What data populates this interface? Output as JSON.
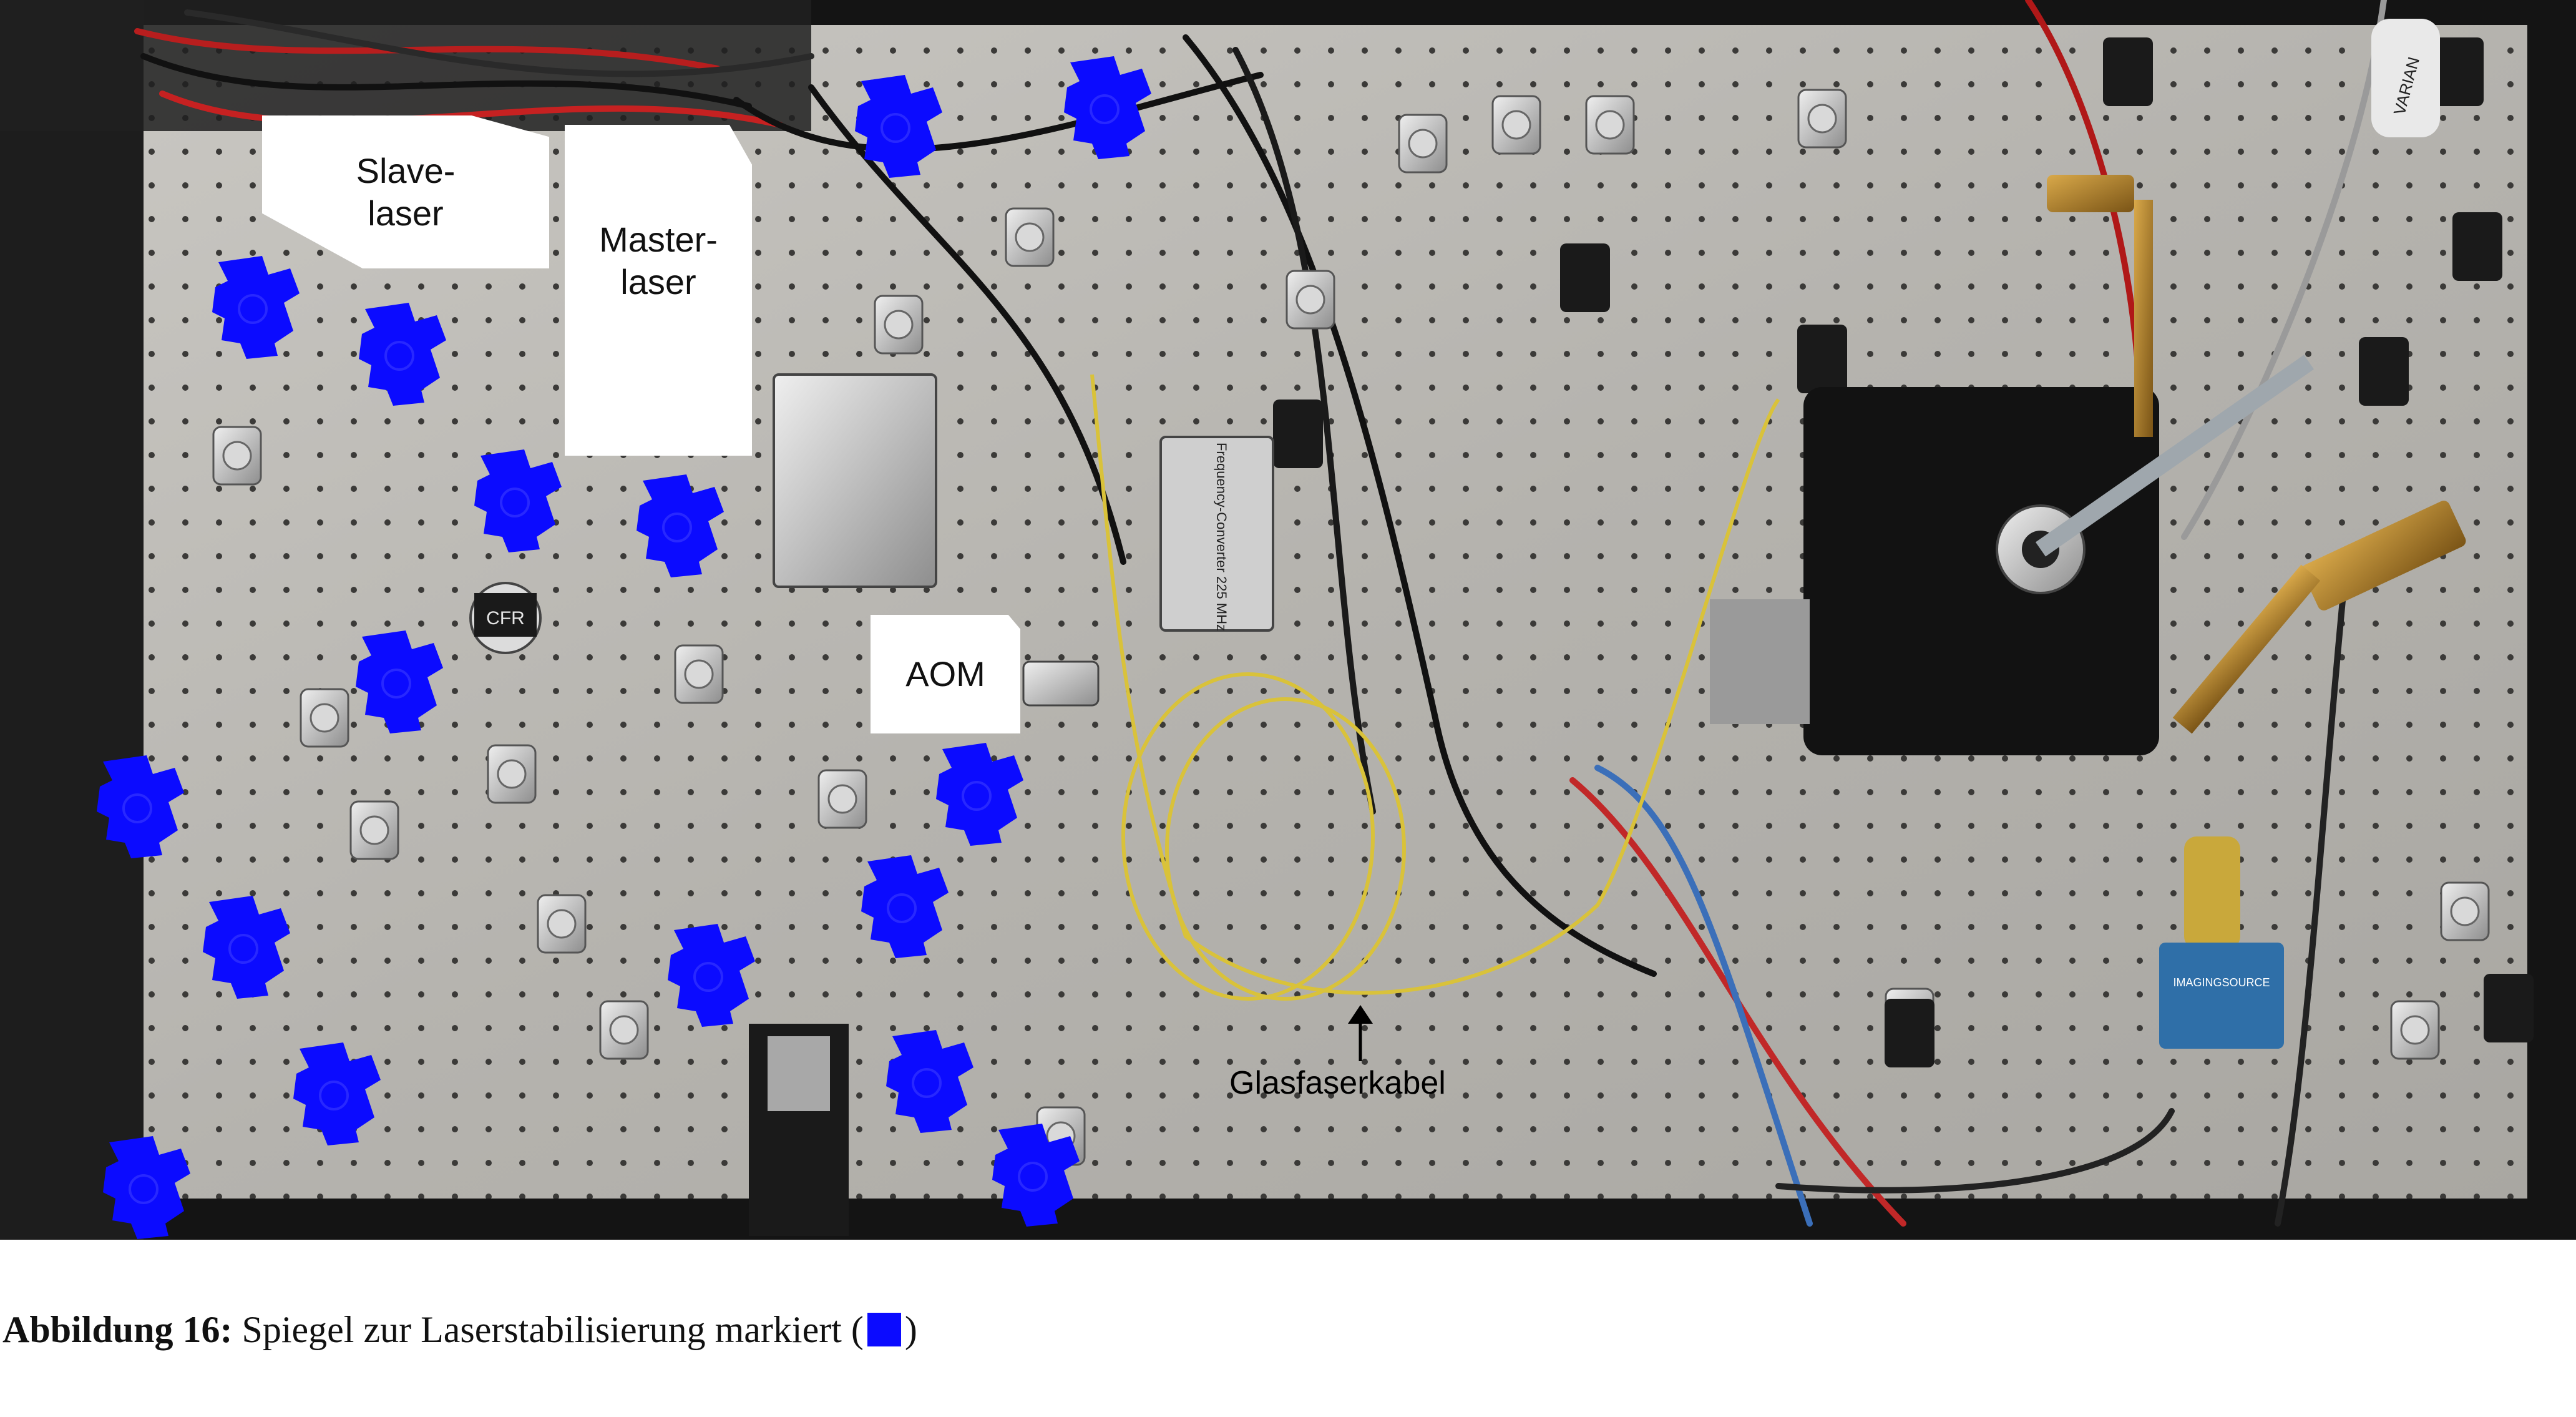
{
  "labels": {
    "slave": [
      "Slave-",
      "laser"
    ],
    "master": [
      "Master-",
      "laser"
    ],
    "aom": "AOM",
    "fiber": "Glasfaserkabel"
  },
  "device_text": {
    "converter": "Frequency-Converter 225 MHz",
    "camera_brand": "IMAGINGSOURCE",
    "varian": "VARIAN",
    "cfr": "CFR"
  },
  "caption": {
    "number": "Abbildung 16:",
    "text": "Spiegel zur Laserstabilisierung markiert (",
    "close": ")"
  },
  "colors": {
    "mirror_marker": "#0b0bff",
    "table_surface": "#b9b7b2",
    "fiber": "#d9c23a"
  }
}
